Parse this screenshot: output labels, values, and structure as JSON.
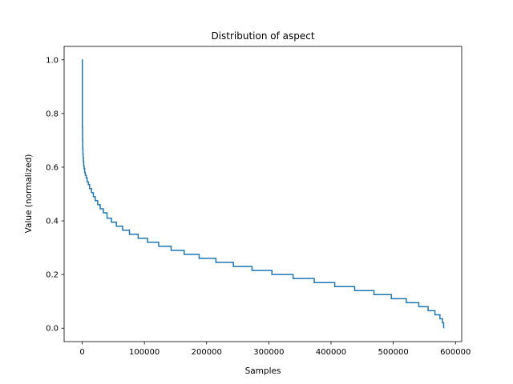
{
  "chart_data": {
    "type": "line",
    "title": "Distribution of aspect",
    "xlabel": "Samples",
    "ylabel": "Value (normalized)",
    "xlim": [
      -29000,
      610000
    ],
    "ylim": [
      -0.05,
      1.05
    ],
    "xticks": [
      0,
      100000,
      200000,
      300000,
      400000,
      500000,
      600000
    ],
    "xtick_labels": [
      "0",
      "100000",
      "200000",
      "300000",
      "400000",
      "500000",
      "600000"
    ],
    "yticks": [
      0.0,
      0.2,
      0.4,
      0.6,
      0.8,
      1.0
    ],
    "ytick_labels": [
      "0.0",
      "0.2",
      "0.4",
      "0.6",
      "0.8",
      "1.0"
    ],
    "grid": false,
    "legend": "none",
    "series": [
      {
        "color": "#1f77b4",
        "x": [
          0,
          300,
          600,
          900,
          1200,
          1500,
          2000,
          2500,
          3000,
          4000,
          5000,
          6500,
          8000,
          10000,
          12000,
          15000,
          18000,
          21000,
          25000,
          29000,
          34000,
          40000,
          47000,
          55000,
          65000,
          76000,
          90000,
          105000,
          123000,
          143000,
          164000,
          188000,
          215000,
          243000,
          273000,
          305000,
          339000,
          373000,
          406000,
          438000,
          469000,
          497000,
          521000,
          541000,
          556000,
          567000,
          575000,
          579000,
          581000
        ],
        "y": [
          1.0,
          0.75,
          0.7,
          0.67,
          0.65,
          0.635,
          0.62,
          0.605,
          0.595,
          0.58,
          0.57,
          0.56,
          0.545,
          0.535,
          0.52,
          0.505,
          0.49,
          0.475,
          0.46,
          0.445,
          0.43,
          0.41,
          0.395,
          0.38,
          0.365,
          0.35,
          0.335,
          0.32,
          0.305,
          0.29,
          0.275,
          0.26,
          0.245,
          0.23,
          0.215,
          0.2,
          0.185,
          0.17,
          0.155,
          0.14,
          0.125,
          0.11,
          0.095,
          0.08,
          0.065,
          0.05,
          0.035,
          0.02,
          0.0
        ]
      }
    ]
  }
}
